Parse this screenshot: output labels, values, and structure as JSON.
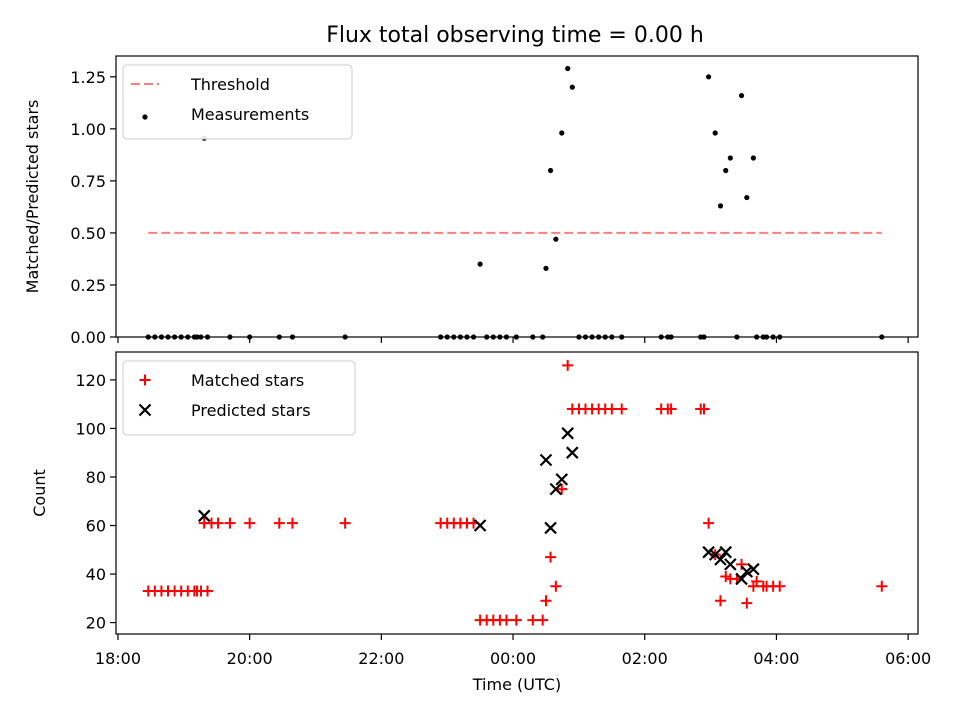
{
  "title": "Flux total observing time = 0.00 h",
  "colors": {
    "threshold": "#ff7f7f",
    "measurements": "#000000",
    "matched": "#ff0000",
    "predicted": "#000000"
  },
  "chart_data": [
    {
      "type": "scatter",
      "title": "Flux total observing time = 0.00 h",
      "xlabel": "",
      "ylabel": "Matched/Predicted stars",
      "x_unit": "hours since 18:00 UTC",
      "xlim": [
        -0.03,
        12.15
      ],
      "ylim": [
        0.0,
        1.35
      ],
      "yticks": [
        0.0,
        0.25,
        0.5,
        0.75,
        1.0,
        1.25
      ],
      "ytick_labels": [
        "0.00",
        "0.25",
        "0.50",
        "0.75",
        "1.00",
        "1.25"
      ],
      "legend_position": "upper left",
      "series": [
        {
          "name": "Threshold",
          "kind": "line",
          "color": "#ff7f7f",
          "dash": true,
          "points": [
            [
              0.46,
              0.5
            ],
            [
              11.6,
              0.5
            ]
          ]
        },
        {
          "name": "Measurements",
          "kind": "dot",
          "color": "#000000",
          "points": [
            [
              0.46,
              0
            ],
            [
              0.56,
              0
            ],
            [
              0.66,
              0
            ],
            [
              0.76,
              0
            ],
            [
              0.86,
              0
            ],
            [
              0.96,
              0
            ],
            [
              1.06,
              0
            ],
            [
              1.16,
              0
            ],
            [
              1.2,
              0
            ],
            [
              1.26,
              0
            ],
            [
              1.36,
              0
            ],
            [
              1.31,
              0.955
            ],
            [
              1.7,
              0
            ],
            [
              2.0,
              0
            ],
            [
              2.45,
              0
            ],
            [
              2.65,
              0
            ],
            [
              3.45,
              0
            ],
            [
              4.9,
              0
            ],
            [
              5.0,
              0
            ],
            [
              5.1,
              0
            ],
            [
              5.2,
              0
            ],
            [
              5.3,
              0
            ],
            [
              5.4,
              0
            ],
            [
              5.6,
              0
            ],
            [
              5.7,
              0
            ],
            [
              5.8,
              0
            ],
            [
              5.9,
              0
            ],
            [
              6.05,
              0
            ],
            [
              6.3,
              0
            ],
            [
              6.45,
              0
            ],
            [
              5.5,
              0.35
            ],
            [
              6.5,
              0.33
            ],
            [
              6.57,
              0.8
            ],
            [
              6.65,
              0.47
            ],
            [
              6.74,
              0.98
            ],
            [
              6.83,
              1.29
            ],
            [
              6.9,
              1.2
            ],
            [
              7.0,
              0
            ],
            [
              7.1,
              0
            ],
            [
              7.2,
              0
            ],
            [
              7.3,
              0
            ],
            [
              7.4,
              0
            ],
            [
              7.5,
              0
            ],
            [
              7.65,
              0
            ],
            [
              8.25,
              0
            ],
            [
              8.35,
              0
            ],
            [
              8.4,
              0
            ],
            [
              8.85,
              0
            ],
            [
              8.9,
              0
            ],
            [
              8.97,
              1.25
            ],
            [
              9.07,
              0.98
            ],
            [
              9.15,
              0.63
            ],
            [
              9.23,
              0.8
            ],
            [
              9.3,
              0.86
            ],
            [
              9.4,
              0
            ],
            [
              9.47,
              1.16
            ],
            [
              9.55,
              0.67
            ],
            [
              9.65,
              0.86
            ],
            [
              9.7,
              0
            ],
            [
              9.8,
              0
            ],
            [
              9.85,
              0
            ],
            [
              9.95,
              0
            ],
            [
              10.05,
              0
            ],
            [
              11.6,
              0
            ]
          ]
        }
      ]
    },
    {
      "type": "scatter",
      "title": "",
      "xlabel": "Time (UTC)",
      "ylabel": "Count",
      "x_unit": "hours since 18:00 UTC",
      "xlim": [
        -0.03,
        12.15
      ],
      "ylim": [
        15.3,
        131.5
      ],
      "yticks": [
        20,
        40,
        60,
        80,
        100,
        120
      ],
      "xticks": [
        0,
        2,
        4,
        6,
        8,
        10,
        12
      ],
      "xtick_labels": [
        "18:00",
        "20:00",
        "22:00",
        "00:00",
        "02:00",
        "04:00",
        "06:00"
      ],
      "legend_position": "upper left",
      "series": [
        {
          "name": "Matched stars",
          "kind": "plus",
          "color": "#ff0000",
          "points": [
            [
              0.46,
              33
            ],
            [
              0.56,
              33
            ],
            [
              0.66,
              33
            ],
            [
              0.76,
              33
            ],
            [
              0.86,
              33
            ],
            [
              0.96,
              33
            ],
            [
              1.06,
              33
            ],
            [
              1.16,
              33
            ],
            [
              1.2,
              33
            ],
            [
              1.26,
              33
            ],
            [
              1.36,
              33
            ],
            [
              1.31,
              61
            ],
            [
              1.42,
              61
            ],
            [
              1.52,
              61
            ],
            [
              1.7,
              61
            ],
            [
              2.0,
              61
            ],
            [
              2.45,
              61
            ],
            [
              2.65,
              61
            ],
            [
              3.45,
              61
            ],
            [
              4.9,
              61
            ],
            [
              5.0,
              61
            ],
            [
              5.1,
              61
            ],
            [
              5.2,
              61
            ],
            [
              5.3,
              61
            ],
            [
              5.4,
              61
            ],
            [
              5.5,
              21
            ],
            [
              5.6,
              21
            ],
            [
              5.7,
              21
            ],
            [
              5.8,
              21
            ],
            [
              5.9,
              21
            ],
            [
              6.05,
              21
            ],
            [
              6.3,
              21
            ],
            [
              6.45,
              21
            ],
            [
              6.5,
              29
            ],
            [
              6.57,
              47
            ],
            [
              6.65,
              35
            ],
            [
              6.74,
              75
            ],
            [
              6.83,
              126
            ],
            [
              6.9,
              108
            ],
            [
              7.0,
              108
            ],
            [
              7.1,
              108
            ],
            [
              7.2,
              108
            ],
            [
              7.3,
              108
            ],
            [
              7.4,
              108
            ],
            [
              7.5,
              108
            ],
            [
              7.65,
              108
            ],
            [
              8.25,
              108
            ],
            [
              8.35,
              108
            ],
            [
              8.4,
              108
            ],
            [
              8.85,
              108
            ],
            [
              8.9,
              108
            ],
            [
              8.97,
              61
            ],
            [
              9.07,
              48
            ],
            [
              9.15,
              29
            ],
            [
              9.23,
              39
            ],
            [
              9.3,
              38
            ],
            [
              9.4,
              38
            ],
            [
              9.47,
              44
            ],
            [
              9.55,
              28
            ],
            [
              9.65,
              35
            ],
            [
              9.7,
              37
            ],
            [
              9.8,
              35
            ],
            [
              9.85,
              35
            ],
            [
              9.95,
              35
            ],
            [
              10.05,
              35
            ],
            [
              11.6,
              35
            ]
          ]
        },
        {
          "name": "Predicted stars",
          "kind": "x",
          "color": "#000000",
          "points": [
            [
              1.31,
              64
            ],
            [
              5.5,
              60
            ],
            [
              6.5,
              87
            ],
            [
              6.57,
              59
            ],
            [
              6.65,
              75
            ],
            [
              6.74,
              79
            ],
            [
              6.83,
              98
            ],
            [
              6.9,
              90
            ],
            [
              8.97,
              49
            ],
            [
              9.07,
              48
            ],
            [
              9.15,
              46
            ],
            [
              9.23,
              49
            ],
            [
              9.3,
              44
            ],
            [
              9.47,
              38
            ],
            [
              9.55,
              41
            ],
            [
              9.65,
              42
            ]
          ]
        }
      ]
    }
  ]
}
